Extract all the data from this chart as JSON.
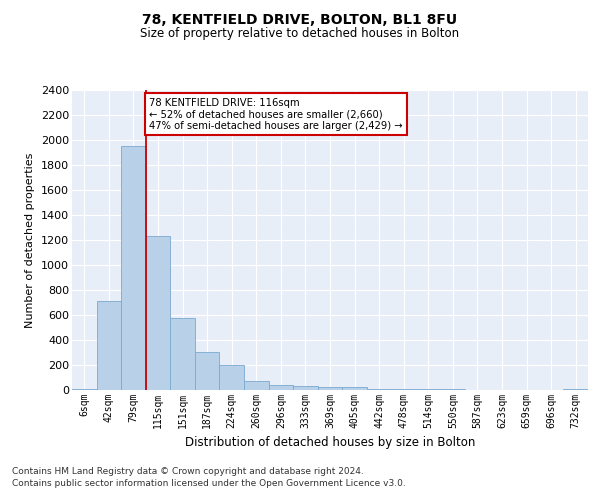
{
  "title1": "78, KENTFIELD DRIVE, BOLTON, BL1 8FU",
  "title2": "Size of property relative to detached houses in Bolton",
  "xlabel": "Distribution of detached houses by size in Bolton",
  "ylabel": "Number of detached properties",
  "bar_color": "#b8d0e8",
  "bar_edge_color": "#7aaad0",
  "background_color": "#e8eef8",
  "grid_color": "#ffffff",
  "annotation_line_color": "#cc0000",
  "annotation_box_color": "#cc0000",
  "annotation_text_line1": "78 KENTFIELD DRIVE: 116sqm",
  "annotation_text_line2": "← 52% of detached houses are smaller (2,660)",
  "annotation_text_line3": "47% of semi-detached houses are larger (2,429) →",
  "categories": [
    "6sqm",
    "42sqm",
    "79sqm",
    "115sqm",
    "151sqm",
    "187sqm",
    "224sqm",
    "260sqm",
    "296sqm",
    "333sqm",
    "369sqm",
    "405sqm",
    "442sqm",
    "478sqm",
    "514sqm",
    "550sqm",
    "587sqm",
    "623sqm",
    "659sqm",
    "696sqm",
    "732sqm"
  ],
  "values": [
    10,
    710,
    1950,
    1230,
    575,
    305,
    200,
    75,
    40,
    30,
    25,
    28,
    10,
    8,
    5,
    12,
    3,
    4,
    3,
    2,
    10
  ],
  "ylim": [
    0,
    2400
  ],
  "yticks": [
    0,
    200,
    400,
    600,
    800,
    1000,
    1200,
    1400,
    1600,
    1800,
    2000,
    2200,
    2400
  ],
  "red_line_x": 2.5,
  "footer_line1": "Contains HM Land Registry data © Crown copyright and database right 2024.",
  "footer_line2": "Contains public sector information licensed under the Open Government Licence v3.0.",
  "fig_width": 6.0,
  "fig_height": 5.0,
  "fig_bg": "#ffffff"
}
